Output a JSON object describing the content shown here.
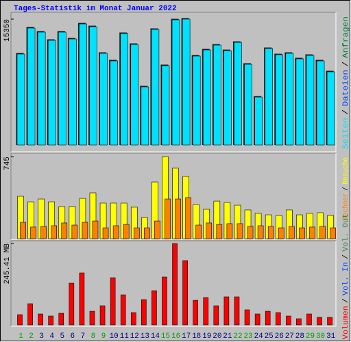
{
  "title": "Tages-Statistik im Monat Januar 2022",
  "weekend_days": [
    1,
    2,
    8,
    9,
    15,
    16,
    22,
    23,
    29,
    30
  ],
  "chart_data": [
    {
      "type": "bar",
      "ylim": [
        0,
        15350
      ],
      "yticks": [
        15350
      ],
      "legend_separator": "/",
      "series": [
        {
          "name": "Seiten",
          "color": "#00e0ff",
          "values": [
            11095,
            14265,
            13765,
            12765,
            13765,
            12930,
            14765,
            14430,
            11180,
            10260,
            13600,
            12265,
            7090,
            14100,
            9680,
            15265,
            15350,
            10845,
            11595,
            12180,
            11510,
            12515,
            9845,
            5840,
            11765,
            11010,
            11180,
            10510,
            10930,
            10260,
            8925
          ]
        },
        {
          "name": "Dateien",
          "color": "#0040ff"
        },
        {
          "name": "Anfragen",
          "color": "#008040"
        }
      ]
    },
    {
      "type": "bar",
      "ylim": [
        0,
        745
      ],
      "yticks": [
        745
      ],
      "legend_separator": "/",
      "series": [
        {
          "name": "Rechner",
          "color": "#ff8000",
          "values": [
            149,
            106,
            112,
            118,
            143,
            124,
            149,
            161,
            99,
            118,
            130,
            99,
            99,
            161,
            360,
            360,
            373,
            124,
            143,
            130,
            137,
            137,
            112,
            118,
            112,
            99,
            112,
            99,
            106,
            112,
            99
          ]
        },
        {
          "name": "Besuche",
          "color": "#ffff00",
          "values": [
            385,
            335,
            360,
            335,
            292,
            292,
            366,
            416,
            323,
            323,
            323,
            286,
            192,
            515,
            745,
            640,
            565,
            310,
            267,
            341,
            329,
            304,
            261,
            230,
            217,
            211,
            261,
            217,
            230,
            236,
            211
          ]
        }
      ]
    },
    {
      "type": "bar",
      "ylim": [
        0,
        245.41
      ],
      "yticks": [
        {
          "value": 245.41,
          "label": "245.41 MB"
        }
      ],
      "legend_separator": "/",
      "categories": [
        "1",
        "2",
        "3",
        "4",
        "5",
        "6",
        "7",
        "8",
        "9",
        "10",
        "11",
        "12",
        "13",
        "14",
        "15",
        "16",
        "17",
        "18",
        "19",
        "20",
        "21",
        "22",
        "23",
        "24",
        "25",
        "26",
        "27",
        "28",
        "29",
        "30",
        "31"
      ],
      "series": [
        {
          "name": "Volumen",
          "color": "#ff0000",
          "values": [
            30.9,
            63.9,
            33,
            26.8,
            35.1,
            125.8,
            156.7,
            41.2,
            57.7,
            142.3,
            90.7,
            37.1,
            76.3,
            103.1,
            144.4,
            245.41,
            193.9,
            74.2,
            82.5,
            57.7,
            84.6,
            84.6,
            45.4,
            33,
            41.2,
            37.1,
            26.8,
            18.6,
            33,
            22.7,
            22.7
          ]
        },
        {
          "name": "Vol. In",
          "color": "#0040ff"
        },
        {
          "name": "Vol. Out",
          "color": "#408040"
        }
      ]
    }
  ]
}
